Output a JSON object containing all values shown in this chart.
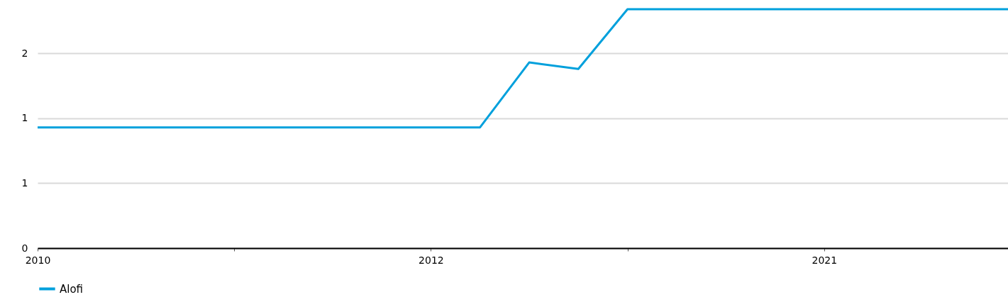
{
  "chart_data": {
    "type": "line",
    "categories": [
      "2010",
      null,
      null,
      null,
      null,
      null,
      null,
      null,
      "2012",
      null,
      null,
      null,
      null,
      null,
      null,
      null,
      "2021",
      null,
      null,
      null,
      null
    ],
    "series": [
      {
        "name": "Alofi",
        "color": "#00a0dc",
        "values": [
          0.93,
          0.93,
          0.93,
          0.93,
          0.93,
          0.93,
          0.93,
          0.93,
          0.93,
          0.93,
          1.43,
          1.38,
          1.84,
          1.84,
          1.84,
          1.84,
          1.84,
          1.84,
          1.84,
          1.84,
          1.84
        ]
      }
    ],
    "ylim": [
      0,
      1.9
    ],
    "yticks": [
      0,
      {
        "value": 0.5,
        "label": "1"
      },
      {
        "value": 1,
        "label": "1"
      },
      {
        "value": 1.5,
        "label": "2"
      }
    ],
    "grid": "y",
    "legend": "bottom",
    "marker": "none",
    "line_style": "solid"
  }
}
